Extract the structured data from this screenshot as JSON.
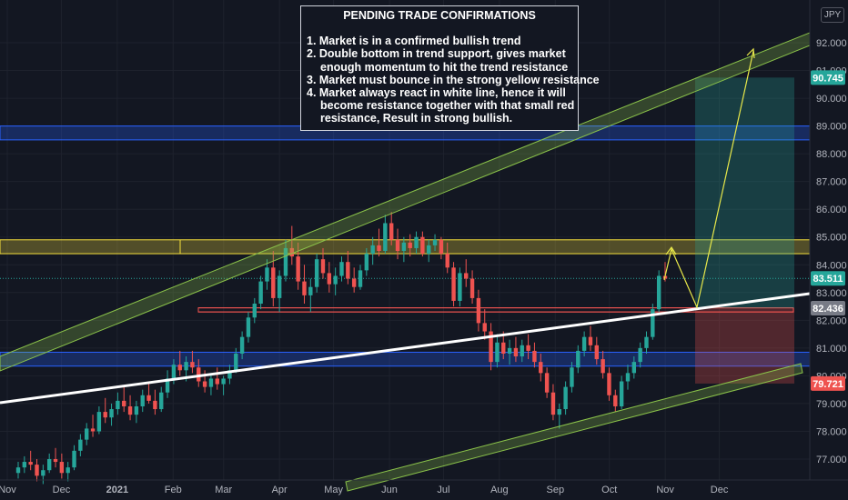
{
  "chart_data": {
    "type": "candlestick",
    "currency": "JPY",
    "y_axis": {
      "ticks": [
        "92.000",
        "91.000",
        "90.000",
        "89.000",
        "88.000",
        "87.000",
        "86.000",
        "85.000",
        "84.000",
        "83.000",
        "82.000",
        "81.000",
        "80.000",
        "79.000",
        "78.000",
        "77.000"
      ],
      "ylim": [
        76.0,
        92.8
      ]
    },
    "x_axis": {
      "ticks": [
        "Nov",
        "Dec",
        "2021",
        "Feb",
        "Mar",
        "Apr",
        "May",
        "Jun",
        "Jul",
        "Aug",
        "Sep",
        "Oct",
        "Nov",
        "Dec"
      ],
      "range": [
        "2020-11-01",
        "2021-12-31"
      ]
    },
    "price_labels": [
      {
        "value": "90.745",
        "color": "#26a69a"
      },
      {
        "value": "83.511",
        "color": "#26a69a"
      },
      {
        "value": "82.436",
        "color": "#787b86"
      },
      {
        "value": "79.721",
        "color": "#ef5350"
      }
    ],
    "annotation": {
      "title": "PENDING TRADE CONFIRMATIONS",
      "lines": [
        [
          "1. Market is in a confirmed bullish trend"
        ],
        [
          "2. Double bottom in trend support, gives market",
          "enough momentum to hit the trend resistance"
        ],
        [
          "3. Market must bounce in the strong yellow resistance"
        ],
        [
          "4. Market always react in white line, hence it will",
          "become resistance together with that small red",
          "resistance, Result in strong bullish."
        ]
      ]
    },
    "zones": [
      {
        "name": "blue resistance zone",
        "from": 88.5,
        "to": 89.0,
        "color": "#2962ff"
      },
      {
        "name": "yellow resistance zone",
        "from": 84.4,
        "to": 84.9,
        "color": "#f7e03c"
      },
      {
        "name": "blue support zone",
        "from": 80.35,
        "to": 80.85,
        "color": "#2962ff"
      },
      {
        "name": "red resistance",
        "from": 82.3,
        "to": 82.45,
        "color": "#ef5350"
      }
    ],
    "position": {
      "entry": 82.436,
      "target": 90.745,
      "stop": 79.721
    },
    "series": [
      {
        "values": [
          [
            76.5,
            76.9,
            76.3,
            76.7
          ],
          [
            76.7,
            77.1,
            76.5,
            76.9
          ],
          [
            76.9,
            77.3,
            76.6,
            76.8
          ],
          [
            76.8,
            77.0,
            76.2,
            76.4
          ],
          [
            76.4,
            76.8,
            76.1,
            76.6
          ],
          [
            76.6,
            77.2,
            76.5,
            77.0
          ],
          [
            77.0,
            77.4,
            76.7,
            76.9
          ],
          [
            76.9,
            77.2,
            76.3,
            76.5
          ],
          [
            76.5,
            76.9,
            76.2,
            76.7
          ],
          [
            76.7,
            77.5,
            76.6,
            77.3
          ],
          [
            77.3,
            77.9,
            77.1,
            77.7
          ],
          [
            77.7,
            78.3,
            77.5,
            78.1
          ],
          [
            78.1,
            78.6,
            77.8,
            78.0
          ],
          [
            78.0,
            78.9,
            77.9,
            78.7
          ],
          [
            78.7,
            79.2,
            78.3,
            78.5
          ],
          [
            78.5,
            79.0,
            78.2,
            78.8
          ],
          [
            78.8,
            79.4,
            78.6,
            79.1
          ],
          [
            79.1,
            79.6,
            78.7,
            78.9
          ],
          [
            78.9,
            79.3,
            78.4,
            78.6
          ],
          [
            78.6,
            79.1,
            78.3,
            78.9
          ],
          [
            78.9,
            79.5,
            78.7,
            79.3
          ],
          [
            79.3,
            79.8,
            79.0,
            79.1
          ],
          [
            79.1,
            79.5,
            78.6,
            78.8
          ],
          [
            78.8,
            79.6,
            78.7,
            79.4
          ],
          [
            79.4,
            80.2,
            79.2,
            79.9
          ],
          [
            79.9,
            80.6,
            79.7,
            80.4
          ],
          [
            80.4,
            80.9,
            80.0,
            80.2
          ],
          [
            80.2,
            80.7,
            79.8,
            80.5
          ],
          [
            80.5,
            80.9,
            80.1,
            80.3
          ],
          [
            80.3,
            80.6,
            79.6,
            79.8
          ],
          [
            79.8,
            80.2,
            79.4,
            79.6
          ],
          [
            79.6,
            80.1,
            79.3,
            79.9
          ],
          [
            79.9,
            80.3,
            79.5,
            79.7
          ],
          [
            79.7,
            80.0,
            79.3,
            79.9
          ],
          [
            79.9,
            80.4,
            79.7,
            80.2
          ],
          [
            80.2,
            81.0,
            80.1,
            80.8
          ],
          [
            80.8,
            81.6,
            80.6,
            81.4
          ],
          [
            81.4,
            82.3,
            81.2,
            82.1
          ],
          [
            82.1,
            82.8,
            81.9,
            82.6
          ],
          [
            82.6,
            83.6,
            82.4,
            83.4
          ],
          [
            83.4,
            84.2,
            83.1,
            83.9
          ],
          [
            83.9,
            84.5,
            82.5,
            82.8
          ],
          [
            82.8,
            83.8,
            82.3,
            83.6
          ],
          [
            83.6,
            84.9,
            83.4,
            84.6
          ],
          [
            84.6,
            85.4,
            84.0,
            84.3
          ],
          [
            84.3,
            84.8,
            83.1,
            83.4
          ],
          [
            83.4,
            84.0,
            82.6,
            82.9
          ],
          [
            82.9,
            83.5,
            82.3,
            83.2
          ],
          [
            83.2,
            84.4,
            83.0,
            84.2
          ],
          [
            84.2,
            84.6,
            83.5,
            83.7
          ],
          [
            83.7,
            84.1,
            83.0,
            83.3
          ],
          [
            83.3,
            83.9,
            82.9,
            83.6
          ],
          [
            83.6,
            84.3,
            83.4,
            84.1
          ],
          [
            84.1,
            84.5,
            83.3,
            83.5
          ],
          [
            83.5,
            83.9,
            83.0,
            83.2
          ],
          [
            83.2,
            84.0,
            83.1,
            83.8
          ],
          [
            83.8,
            84.6,
            83.6,
            84.4
          ],
          [
            84.4,
            85.0,
            84.0,
            84.7
          ],
          [
            84.7,
            85.3,
            84.3,
            84.5
          ],
          [
            84.5,
            85.8,
            84.4,
            85.5
          ],
          [
            85.5,
            85.9,
            84.7,
            84.9
          ],
          [
            84.9,
            85.3,
            84.2,
            84.5
          ],
          [
            84.5,
            85.0,
            84.1,
            84.8
          ],
          [
            84.8,
            85.1,
            84.3,
            84.6
          ],
          [
            84.6,
            85.2,
            84.4,
            85.0
          ],
          [
            85.0,
            85.2,
            84.3,
            84.4
          ],
          [
            84.4,
            84.9,
            84.1,
            84.7
          ],
          [
            84.7,
            85.1,
            84.5,
            84.9
          ],
          [
            84.9,
            85.0,
            84.2,
            84.4
          ],
          [
            84.4,
            84.8,
            83.7,
            83.9
          ],
          [
            83.9,
            84.1,
            82.5,
            82.7
          ],
          [
            82.7,
            83.9,
            82.5,
            83.7
          ],
          [
            83.7,
            84.2,
            83.2,
            83.5
          ],
          [
            83.5,
            83.8,
            82.6,
            82.8
          ],
          [
            82.8,
            83.1,
            81.6,
            81.9
          ],
          [
            81.9,
            82.4,
            81.3,
            81.6
          ],
          [
            81.6,
            81.9,
            80.2,
            80.5
          ],
          [
            80.5,
            81.5,
            80.3,
            81.2
          ],
          [
            81.2,
            81.6,
            80.6,
            80.8
          ],
          [
            80.8,
            81.3,
            80.4,
            81.0
          ],
          [
            81.0,
            81.4,
            80.5,
            80.7
          ],
          [
            80.7,
            81.3,
            80.5,
            81.1
          ],
          [
            81.1,
            81.5,
            80.6,
            80.9
          ],
          [
            80.9,
            81.2,
            80.3,
            80.5
          ],
          [
            80.5,
            80.8,
            79.8,
            80.1
          ],
          [
            80.1,
            80.3,
            79.2,
            79.4
          ],
          [
            79.4,
            79.7,
            78.4,
            78.6
          ],
          [
            78.6,
            79.0,
            78.1,
            78.8
          ],
          [
            78.8,
            79.8,
            78.6,
            79.6
          ],
          [
            79.6,
            80.5,
            79.4,
            80.3
          ],
          [
            80.3,
            81.1,
            80.1,
            80.9
          ],
          [
            80.9,
            81.6,
            80.7,
            81.4
          ],
          [
            81.4,
            81.8,
            80.9,
            81.1
          ],
          [
            81.1,
            81.4,
            80.4,
            80.6
          ],
          [
            80.6,
            80.9,
            79.9,
            80.1
          ],
          [
            80.1,
            80.3,
            79.1,
            79.3
          ],
          [
            79.3,
            79.5,
            78.7,
            78.9
          ],
          [
            78.9,
            80.0,
            78.8,
            79.8
          ],
          [
            79.8,
            80.4,
            79.5,
            80.1
          ],
          [
            80.1,
            80.7,
            79.9,
            80.5
          ],
          [
            80.5,
            81.2,
            80.3,
            81.0
          ],
          [
            81.0,
            81.6,
            80.8,
            81.4
          ],
          [
            81.4,
            82.6,
            81.3,
            82.4
          ],
          [
            82.4,
            83.8,
            82.3,
            83.6
          ],
          [
            83.6,
            84.1,
            83.4,
            83.5
          ]
        ]
      }
    ]
  }
}
